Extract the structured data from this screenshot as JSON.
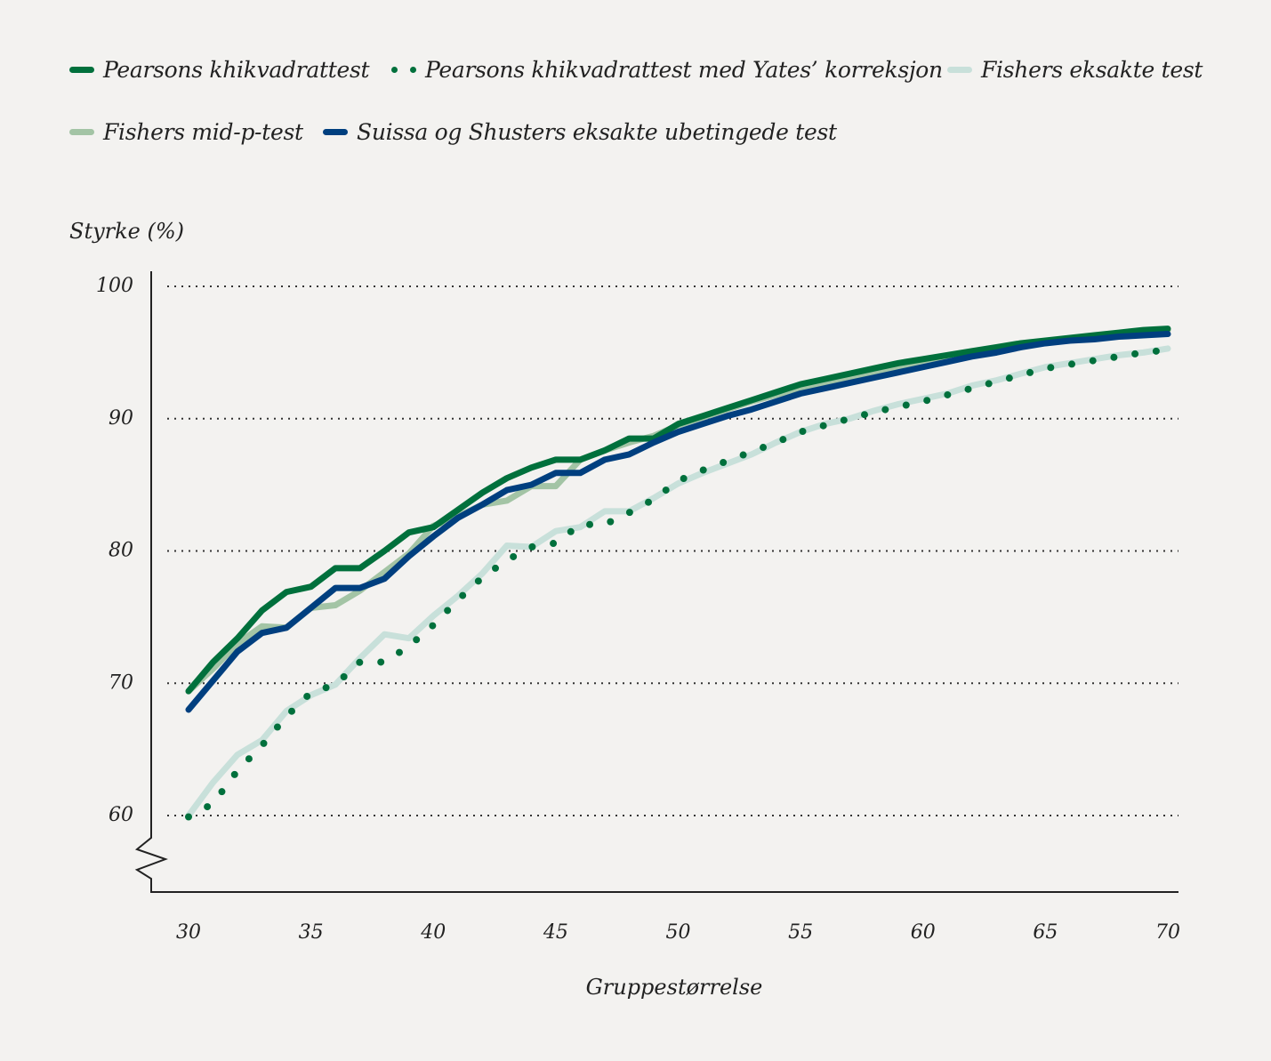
{
  "chart_data": {
    "type": "line",
    "xlabel": "Gruppestørrelse",
    "ylabel": "Styrke (%)",
    "xlim": [
      30,
      70
    ],
    "ylim": [
      60,
      100
    ],
    "xticks": [
      "30",
      "35",
      "40",
      "45",
      "50",
      "55",
      "60",
      "65",
      "70"
    ],
    "yticks": [
      "60",
      "70",
      "80",
      "90",
      "100"
    ],
    "grid": "horizontal dotted",
    "legend": "top",
    "x": [
      30,
      31,
      32,
      33,
      34,
      35,
      36,
      37,
      38,
      39,
      40,
      41,
      42,
      43,
      44,
      45,
      46,
      47,
      48,
      49,
      50,
      51,
      52,
      53,
      54,
      55,
      56,
      57,
      58,
      59,
      60,
      61,
      62,
      63,
      64,
      65,
      66,
      67,
      68,
      69,
      70
    ],
    "series": [
      {
        "name": "Pearsons khikvadrattest",
        "color": "#00703c",
        "style": "solid",
        "values": [
          69.4,
          71.6,
          73.4,
          75.5,
          76.9,
          77.3,
          78.7,
          78.7,
          80.0,
          81.4,
          81.8,
          83.1,
          84.4,
          85.5,
          86.3,
          86.9,
          86.9,
          87.6,
          88.5,
          88.5,
          89.6,
          90.2,
          90.8,
          91.4,
          92.0,
          92.6,
          93.0,
          93.4,
          93.8,
          94.2,
          94.5,
          94.8,
          95.1,
          95.4,
          95.7,
          95.9,
          96.1,
          96.3,
          96.5,
          96.7,
          96.8
        ]
      },
      {
        "name": "Pearsons khikvadrattest med Yates’ korreksjon",
        "color": "#00703c",
        "style": "dotted",
        "values": [
          59.9,
          60.9,
          63.4,
          65.3,
          67.5,
          69.3,
          69.9,
          71.6,
          71.6,
          72.8,
          74.4,
          76.3,
          78.0,
          79.3,
          80.3,
          80.6,
          82.0,
          82.0,
          82.9,
          83.9,
          85.3,
          86.1,
          86.8,
          87.5,
          88.2,
          89.0,
          89.5,
          90.0,
          90.5,
          90.9,
          91.3,
          91.8,
          92.3,
          92.8,
          93.3,
          93.8,
          94.1,
          94.4,
          94.7,
          95.0,
          95.2
        ]
      },
      {
        "name": "Fishers eksakte test",
        "color": "#c8e0da",
        "style": "solid",
        "values": [
          60.0,
          62.5,
          64.6,
          65.7,
          67.9,
          69.1,
          69.9,
          71.9,
          73.7,
          73.4,
          75.1,
          76.6,
          78.3,
          80.4,
          80.3,
          81.5,
          81.8,
          83.0,
          83.0,
          84.0,
          85.1,
          85.9,
          86.6,
          87.3,
          88.2,
          89.0,
          89.6,
          90.0,
          90.6,
          91.1,
          91.5,
          91.9,
          92.5,
          92.9,
          93.4,
          93.9,
          94.2,
          94.5,
          94.8,
          95.0,
          95.3
        ]
      },
      {
        "name": "Fishers mid-p-test",
        "color": "#a3c4a5",
        "style": "solid",
        "values": [
          69.4,
          71.1,
          73.0,
          74.3,
          74.2,
          75.7,
          75.9,
          77.0,
          78.4,
          79.8,
          81.9,
          82.6,
          83.5,
          83.8,
          84.9,
          84.9,
          86.9,
          87.6,
          88.2,
          88.7,
          89.5,
          90.1,
          90.7,
          91.3,
          91.8,
          92.3,
          92.7,
          93.1,
          93.5,
          93.9,
          94.3,
          94.6,
          94.9,
          95.2,
          95.5,
          95.8,
          96.0,
          96.2,
          96.4,
          96.6,
          96.7
        ]
      },
      {
        "name": "Suissa og Shusters eksakte ubetingede test",
        "color": "#003f7f",
        "style": "solid",
        "values": [
          68.0,
          70.2,
          72.4,
          73.8,
          74.2,
          75.7,
          77.2,
          77.2,
          77.9,
          79.6,
          81.1,
          82.5,
          83.5,
          84.6,
          85.0,
          85.9,
          85.9,
          86.9,
          87.3,
          88.2,
          89.0,
          89.6,
          90.2,
          90.7,
          91.3,
          91.9,
          92.3,
          92.7,
          93.1,
          93.5,
          93.9,
          94.3,
          94.7,
          95.0,
          95.4,
          95.7,
          95.9,
          96.0,
          96.2,
          96.3,
          96.4
        ]
      }
    ]
  }
}
